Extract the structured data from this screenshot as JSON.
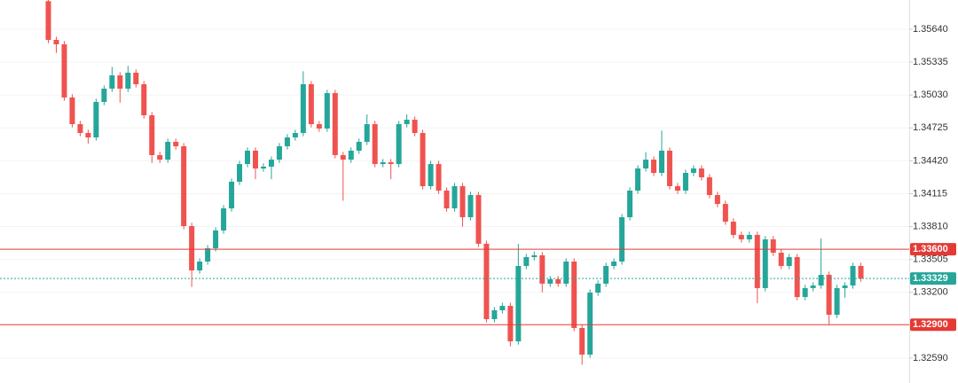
{
  "chart_data": {
    "type": "candlestick",
    "open": [
      1.359,
      1.35541,
      1.355,
      1.35007,
      1.3476,
      1.34678,
      1.34637,
      1.34966,
      1.35089,
      1.35212,
      1.35089,
      1.35237,
      1.3513,
      1.34842,
      1.34473,
      1.34431,
      1.34596,
      1.34555,
      1.33815,
      1.33404,
      1.33486,
      1.33609,
      1.33774,
      1.33979,
      1.34226,
      1.3439,
      1.34514,
      1.34349,
      1.34366,
      1.34431,
      1.34555,
      1.34637,
      1.34678,
      1.3513,
      1.3476,
      1.34719,
      1.35048,
      1.34473,
      1.34431,
      1.34514,
      1.34596,
      1.3476,
      1.3439,
      1.34407,
      1.3439,
      1.3476,
      1.34801,
      1.34678,
      1.34185,
      1.3439,
      1.34144,
      1.33979,
      1.34185,
      1.33897,
      1.34103,
      1.33651,
      1.32952,
      1.33034,
      1.33075,
      1.32746,
      1.33445,
      1.33527,
      1.33544,
      1.33281,
      1.33322,
      1.33281,
      1.33486,
      1.3287,
      1.32623,
      1.33198,
      1.33281,
      1.33445,
      1.33486,
      1.33897,
      1.34144,
      1.34349,
      1.34431,
      1.34308,
      1.34514,
      1.34185,
      1.34144,
      1.34308,
      1.34349,
      1.34267,
      1.34103,
      1.3402,
      1.33856,
      1.33733,
      1.33692,
      1.33733,
      1.3324,
      1.33692,
      1.33568,
      1.33445,
      1.33527,
      1.33157,
      1.3324,
      1.33264,
      1.33363,
      1.32993,
      1.3324,
      1.33264,
      1.33445
    ],
    "high": [
      1.3593,
      1.35571,
      1.3553,
      1.35037,
      1.3479,
      1.34708,
      1.34996,
      1.35119,
      1.3529,
      1.35242,
      1.353,
      1.35267,
      1.3516,
      1.34872,
      1.34503,
      1.34626,
      1.34626,
      1.34585,
      1.33845,
      1.33516,
      1.33639,
      1.33804,
      1.34009,
      1.34256,
      1.3442,
      1.34544,
      1.34544,
      1.34396,
      1.34461,
      1.34585,
      1.34667,
      1.34708,
      1.3525,
      1.3516,
      1.3479,
      1.35078,
      1.35078,
      1.34503,
      1.34544,
      1.34626,
      1.3485,
      1.3479,
      1.34437,
      1.34437,
      1.3479,
      1.3485,
      1.34831,
      1.34708,
      1.3442,
      1.3442,
      1.34174,
      1.34215,
      1.34215,
      1.34133,
      1.34133,
      1.33681,
      1.33064,
      1.33105,
      1.33105,
      1.3365,
      1.33557,
      1.3358,
      1.33574,
      1.33352,
      1.33352,
      1.33516,
      1.33516,
      1.329,
      1.33228,
      1.33311,
      1.33475,
      1.33516,
      1.33927,
      1.34174,
      1.34379,
      1.345,
      1.34461,
      1.347,
      1.34544,
      1.34215,
      1.34338,
      1.34379,
      1.34379,
      1.34297,
      1.34133,
      1.3405,
      1.33886,
      1.33763,
      1.33763,
      1.33763,
      1.33722,
      1.33722,
      1.33598,
      1.33557,
      1.33557,
      1.3327,
      1.33294,
      1.337,
      1.33393,
      1.3327,
      1.33294,
      1.33475,
      1.33475
    ],
    "low": [
      1.35511,
      1.3542,
      1.34977,
      1.3473,
      1.34648,
      1.3458,
      1.34607,
      1.34936,
      1.35059,
      1.3496,
      1.35059,
      1.351,
      1.34812,
      1.344,
      1.34401,
      1.34401,
      1.34525,
      1.33785,
      1.3325,
      1.33374,
      1.33456,
      1.33579,
      1.33744,
      1.33949,
      1.34196,
      1.3436,
      1.3425,
      1.34319,
      1.3425,
      1.34401,
      1.34525,
      1.34607,
      1.34648,
      1.3473,
      1.34689,
      1.34689,
      1.34443,
      1.3405,
      1.34401,
      1.34484,
      1.34566,
      1.3436,
      1.3436,
      1.3425,
      1.3436,
      1.3473,
      1.34648,
      1.34155,
      1.34155,
      1.34114,
      1.33949,
      1.33949,
      1.3381,
      1.33867,
      1.33621,
      1.32922,
      1.32922,
      1.33004,
      1.327,
      1.32716,
      1.33415,
      1.33497,
      1.332,
      1.33251,
      1.33251,
      1.33251,
      1.3284,
      1.3253,
      1.32593,
      1.33168,
      1.33251,
      1.33415,
      1.33456,
      1.33867,
      1.34114,
      1.34319,
      1.34278,
      1.34278,
      1.34155,
      1.34114,
      1.34114,
      1.34278,
      1.34237,
      1.34073,
      1.3399,
      1.33826,
      1.33703,
      1.33662,
      1.33662,
      1.331,
      1.3321,
      1.33538,
      1.33415,
      1.33415,
      1.33127,
      1.33127,
      1.3321,
      1.33234,
      1.329,
      1.32963,
      1.3315,
      1.33234,
      1.33299
    ],
    "close": [
      1.35541,
      1.355,
      1.35007,
      1.3476,
      1.34678,
      1.34637,
      1.34966,
      1.35089,
      1.35212,
      1.35089,
      1.35237,
      1.3513,
      1.34842,
      1.34473,
      1.34431,
      1.34596,
      1.34555,
      1.33815,
      1.33404,
      1.33486,
      1.33609,
      1.33774,
      1.33979,
      1.34226,
      1.3439,
      1.34514,
      1.34349,
      1.34366,
      1.34431,
      1.34555,
      1.34637,
      1.34678,
      1.3513,
      1.3476,
      1.34719,
      1.35048,
      1.34473,
      1.34431,
      1.34514,
      1.34596,
      1.3476,
      1.3439,
      1.34407,
      1.3439,
      1.3476,
      1.34801,
      1.34678,
      1.34185,
      1.3439,
      1.34144,
      1.33979,
      1.34185,
      1.33897,
      1.34103,
      1.33651,
      1.32952,
      1.33034,
      1.33075,
      1.32746,
      1.33445,
      1.33527,
      1.33544,
      1.33281,
      1.33322,
      1.33281,
      1.33486,
      1.3287,
      1.32623,
      1.33198,
      1.33281,
      1.33445,
      1.33486,
      1.33897,
      1.34144,
      1.34349,
      1.34431,
      1.34308,
      1.34514,
      1.34185,
      1.34144,
      1.34308,
      1.34349,
      1.34267,
      1.34103,
      1.3402,
      1.33856,
      1.33733,
      1.33692,
      1.33733,
      1.3324,
      1.33692,
      1.33568,
      1.33445,
      1.33527,
      1.33157,
      1.3324,
      1.33264,
      1.33363,
      1.32993,
      1.3324,
      1.33264,
      1.33445,
      1.33329
    ],
    "up_color": "#26a69a",
    "down_color": "#ef5350",
    "ylim": [
      1.3236,
      1.35911
    ],
    "yticks": [
      {
        "value": 1.3564,
        "label": "1.35640"
      },
      {
        "value": 1.35335,
        "label": "1.35335"
      },
      {
        "value": 1.3503,
        "label": "1.35030"
      },
      {
        "value": 1.34725,
        "label": "1.34725"
      },
      {
        "value": 1.3442,
        "label": "1.34420"
      },
      {
        "value": 1.34115,
        "label": "1.34115"
      },
      {
        "value": 1.3381,
        "label": "1.33810"
      },
      {
        "value": 1.33505,
        "label": "1.33505"
      },
      {
        "value": 1.332,
        "label": "1.33200"
      },
      {
        "value": 1.3259,
        "label": "1.32590"
      }
    ],
    "grid": true,
    "price_lines": [
      {
        "value": 1.336,
        "label": "1.33600",
        "color": "#e53935",
        "style": "solid"
      },
      {
        "value": 1.329,
        "label": "1.32900",
        "color": "#e53935",
        "style": "solid"
      },
      {
        "value": 1.33329,
        "label": "1.33329",
        "color": "#26a69a",
        "style": "dotted"
      }
    ]
  }
}
